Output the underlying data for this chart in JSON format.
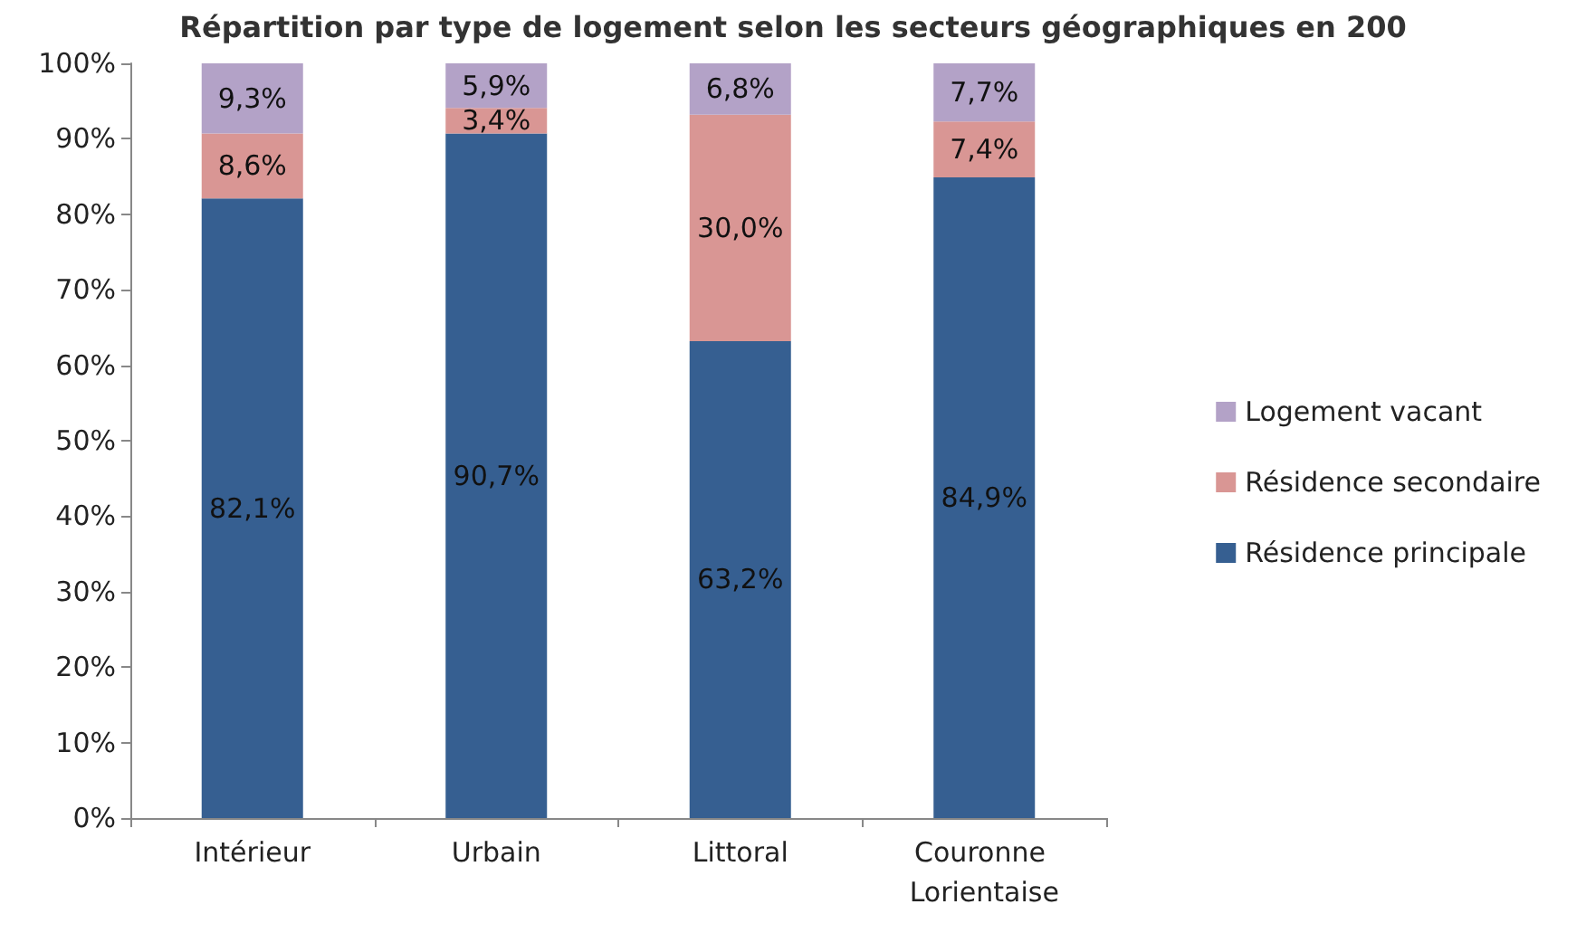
{
  "chart_data": {
    "type": "bar",
    "stacked": true,
    "title": "Répartition par type de logement selon les secteurs géographiques en 200",
    "categories": [
      "Intérieur",
      "Urbain",
      "Littoral",
      "Couronne Lorientaise"
    ],
    "series": [
      {
        "name": "Résidence principale",
        "color": "#365f91",
        "values": [
          82.1,
          90.7,
          63.2,
          84.9
        ],
        "value_labels": [
          "82,1%",
          "90,7%",
          "63,2%",
          "84,9%"
        ]
      },
      {
        "name": "Résidence secondaire",
        "color": "#d99694",
        "values": [
          8.6,
          3.4,
          30.0,
          7.4
        ],
        "value_labels": [
          "8,6%",
          "3,4%",
          "30,0%",
          "7,4%"
        ]
      },
      {
        "name": "Logement vacant",
        "color": "#b3a2c7",
        "values": [
          9.3,
          5.9,
          6.8,
          7.7
        ],
        "value_labels": [
          "9,3%",
          "5,9%",
          "6,8%",
          "7,7%"
        ]
      }
    ],
    "ylim": [
      0,
      100
    ],
    "yticks": [
      {
        "value": 0,
        "label": "0%"
      },
      {
        "value": 10,
        "label": "10%"
      },
      {
        "value": 20,
        "label": "20%"
      },
      {
        "value": 30,
        "label": "30%"
      },
      {
        "value": 40,
        "label": "40%"
      },
      {
        "value": 50,
        "label": "50%"
      },
      {
        "value": 60,
        "label": "60%"
      },
      {
        "value": 70,
        "label": "70%"
      },
      {
        "value": 80,
        "label": "80%"
      },
      {
        "value": 90,
        "label": "90%"
      },
      {
        "value": 100,
        "label": "100%"
      }
    ],
    "legend": "right"
  }
}
